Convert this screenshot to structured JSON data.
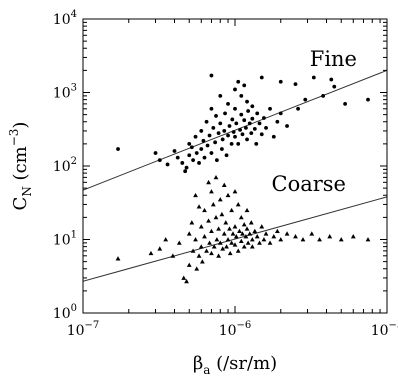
{
  "chart_data": {
    "type": "scatter",
    "xscale": "log",
    "yscale": "log",
    "xlim": [
      1e-07,
      1e-05
    ],
    "ylim": [
      1,
      10000
    ],
    "xlabel": "βa (/sr/m)",
    "ylabel": "CN (cm−3)",
    "x_ticks": [
      {
        "value": 1e-07,
        "mantissa": "10",
        "exp": "−7"
      },
      {
        "value": 1e-06,
        "mantissa": "10",
        "exp": "−6"
      },
      {
        "value": 1e-05,
        "mantissa": "10",
        "exp": "−5"
      }
    ],
    "y_ticks": [
      {
        "value": 1,
        "mantissa": "10",
        "exp": "0"
      },
      {
        "value": 10,
        "mantissa": "10",
        "exp": "1"
      },
      {
        "value": 100,
        "mantissa": "10",
        "exp": "2"
      },
      {
        "value": 1000,
        "mantissa": "10",
        "exp": "3"
      },
      {
        "value": 10000,
        "mantissa": "10",
        "exp": "4"
      }
    ],
    "series": [
      {
        "name": "Fine",
        "marker": "circle",
        "color": "#000000",
        "fit_line": [
          [
            1e-07,
            47
          ],
          [
            1e-05,
            2000
          ]
        ],
        "points": [
          [
            1.7e-07,
            170
          ],
          [
            3e-07,
            150
          ],
          [
            3.2e-07,
            120
          ],
          [
            3.6e-07,
            105
          ],
          [
            4e-07,
            160
          ],
          [
            4.2e-07,
            130
          ],
          [
            4.5e-07,
            110
          ],
          [
            4.7e-07,
            85
          ],
          [
            4.8e-07,
            95
          ],
          [
            5e-07,
            200
          ],
          [
            5e-07,
            140
          ],
          [
            5.2e-07,
            180
          ],
          [
            5.3e-07,
            120
          ],
          [
            5.5e-07,
            250
          ],
          [
            5.6e-07,
            150
          ],
          [
            5.8e-07,
            110
          ],
          [
            6e-07,
            300
          ],
          [
            6e-07,
            170
          ],
          [
            6.2e-07,
            220
          ],
          [
            6.3e-07,
            130
          ],
          [
            6.5e-07,
            400
          ],
          [
            6.6e-07,
            190
          ],
          [
            6.8e-07,
            260
          ],
          [
            7e-07,
            1700
          ],
          [
            7e-07,
            600
          ],
          [
            7e-07,
            150
          ],
          [
            7.2e-07,
            330
          ],
          [
            7.4e-07,
            210
          ],
          [
            7.5e-07,
            480
          ],
          [
            7.6e-07,
            120
          ],
          [
            7.8e-07,
            280
          ],
          [
            8e-07,
            380
          ],
          [
            8e-07,
            900
          ],
          [
            8.2e-07,
            170
          ],
          [
            8.3e-07,
            230
          ],
          [
            8.5e-07,
            300
          ],
          [
            8.6e-07,
            520
          ],
          [
            8.8e-07,
            140
          ],
          [
            9e-07,
            260
          ],
          [
            9e-07,
            700
          ],
          [
            9.2e-07,
            350
          ],
          [
            9.5e-07,
            200
          ],
          [
            9.6e-07,
            430
          ],
          [
            9.8e-07,
            290
          ],
          [
            1e-06,
            1100
          ],
          [
            1e-06,
            600
          ],
          [
            1e-06,
            250
          ],
          [
            1.02e-06,
            380
          ],
          [
            1.05e-06,
            1400
          ],
          [
            1.05e-06,
            200
          ],
          [
            1.08e-06,
            310
          ],
          [
            1.1e-06,
            900
          ],
          [
            1.1e-06,
            500
          ],
          [
            1.12e-06,
            270
          ],
          [
            1.15e-06,
            1250
          ],
          [
            1.15e-06,
            420
          ],
          [
            1.18e-06,
            330
          ],
          [
            1.2e-06,
            750
          ],
          [
            1.2e-06,
            230
          ],
          [
            1.22e-06,
            560
          ],
          [
            1.25e-06,
            380
          ],
          [
            1.28e-06,
            280
          ],
          [
            1.3e-06,
            650
          ],
          [
            1.3e-06,
            440
          ],
          [
            1.35e-06,
            320
          ],
          [
            1.38e-06,
            200
          ],
          [
            1.4e-06,
            520
          ],
          [
            1.45e-06,
            380
          ],
          [
            1.5e-06,
            1600
          ],
          [
            1.5e-06,
            270
          ],
          [
            1.55e-06,
            450
          ],
          [
            1.6e-06,
            330
          ],
          [
            1.7e-06,
            600
          ],
          [
            1.8e-06,
            250
          ],
          [
            1.9e-06,
            400
          ],
          [
            2e-06,
            1400
          ],
          [
            2e-06,
            520
          ],
          [
            2.2e-06,
            350
          ],
          [
            2.5e-06,
            1300
          ],
          [
            2.6e-06,
            600
          ],
          [
            2.9e-06,
            800
          ],
          [
            3.3e-06,
            1600
          ],
          [
            3.8e-06,
            900
          ],
          [
            4.3e-06,
            1500
          ],
          [
            4.5e-06,
            1200
          ],
          [
            5.3e-06,
            700
          ],
          [
            7.5e-06,
            800
          ]
        ]
      },
      {
        "name": "Coarse",
        "marker": "triangle",
        "color": "#000000",
        "fit_line": [
          [
            1e-07,
            2.7
          ],
          [
            1e-05,
            38
          ]
        ],
        "points": [
          [
            1.7e-07,
            5.5
          ],
          [
            2.8e-07,
            6.5
          ],
          [
            3.2e-07,
            7.5
          ],
          [
            3.5e-07,
            10
          ],
          [
            3.9e-07,
            6
          ],
          [
            4.3e-07,
            9
          ],
          [
            4.6e-07,
            3.0
          ],
          [
            4.8e-07,
            2.7
          ],
          [
            5e-07,
            4.5
          ],
          [
            5e-07,
            12
          ],
          [
            5.2e-07,
            17
          ],
          [
            5.3e-07,
            7
          ],
          [
            5.5e-07,
            40
          ],
          [
            5.5e-07,
            10
          ],
          [
            5.6e-07,
            4
          ],
          [
            5.8e-07,
            28
          ],
          [
            5.8e-07,
            6
          ],
          [
            6e-07,
            15
          ],
          [
            6e-07,
            8
          ],
          [
            6.1e-07,
            5
          ],
          [
            6.3e-07,
            25
          ],
          [
            6.3e-07,
            11
          ],
          [
            6.5e-07,
            7
          ],
          [
            6.7e-07,
            60
          ],
          [
            6.7e-07,
            18
          ],
          [
            6.8e-07,
            9
          ],
          [
            7e-07,
            45
          ],
          [
            7e-07,
            13
          ],
          [
            7e-07,
            6.5
          ],
          [
            7.2e-07,
            30
          ],
          [
            7.3e-07,
            8
          ],
          [
            7.5e-07,
            70
          ],
          [
            7.5e-07,
            20
          ],
          [
            7.6e-07,
            10
          ],
          [
            7.8e-07,
            14
          ],
          [
            7.8e-07,
            6
          ],
          [
            8e-07,
            35
          ],
          [
            8e-07,
            9
          ],
          [
            8.2e-07,
            22
          ],
          [
            8.3e-07,
            7.5
          ],
          [
            8.5e-07,
            55
          ],
          [
            8.5e-07,
            12
          ],
          [
            8.7e-07,
            17
          ],
          [
            8.8e-07,
            8
          ],
          [
            9e-07,
            40
          ],
          [
            9e-07,
            10
          ],
          [
            9.2e-07,
            14
          ],
          [
            9.3e-07,
            6.5
          ],
          [
            9.5e-07,
            25
          ],
          [
            9.5e-07,
            9
          ],
          [
            9.7e-07,
            12
          ],
          [
            1e-06,
            45
          ],
          [
            1e-06,
            15
          ],
          [
            1e-06,
            8.5
          ],
          [
            1.02e-06,
            11
          ],
          [
            1.05e-06,
            30
          ],
          [
            1.05e-06,
            7
          ],
          [
            1.07e-06,
            13
          ],
          [
            1.1e-06,
            20
          ],
          [
            1.1e-06,
            9.5
          ],
          [
            1.12e-06,
            12
          ],
          [
            1.15e-06,
            16
          ],
          [
            1.15e-06,
            8
          ],
          [
            1.18e-06,
            11
          ],
          [
            1.2e-06,
            25
          ],
          [
            1.2e-06,
            14
          ],
          [
            1.22e-06,
            9
          ],
          [
            1.25e-06,
            12
          ],
          [
            1.28e-06,
            17
          ],
          [
            1.3e-06,
            10
          ],
          [
            1.3e-06,
            8
          ],
          [
            1.35e-06,
            13
          ],
          [
            1.4e-06,
            11
          ],
          [
            1.45e-06,
            9
          ],
          [
            1.5e-06,
            15
          ],
          [
            1.55e-06,
            10
          ],
          [
            1.6e-06,
            12
          ],
          [
            1.7e-06,
            9
          ],
          [
            1.8e-06,
            11
          ],
          [
            1.9e-06,
            13
          ],
          [
            2e-06,
            10
          ],
          [
            2.2e-06,
            12
          ],
          [
            2.5e-06,
            11
          ],
          [
            2.8e-06,
            10
          ],
          [
            3.2e-06,
            12
          ],
          [
            3.6e-06,
            10
          ],
          [
            4.2e-06,
            11
          ],
          [
            5e-06,
            10
          ],
          [
            6e-06,
            11
          ],
          [
            7.5e-06,
            10
          ]
        ]
      }
    ]
  }
}
